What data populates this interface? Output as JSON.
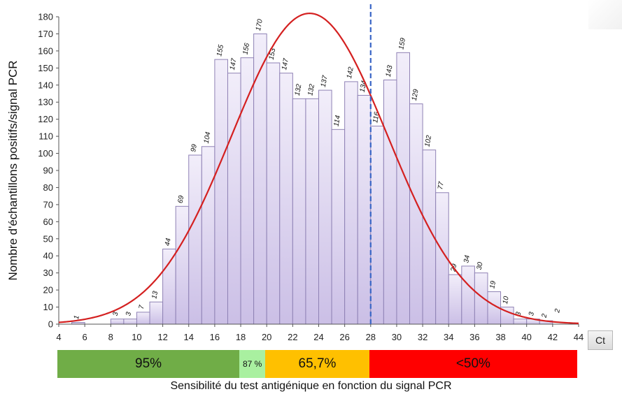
{
  "chart_data": {
    "type": "bar",
    "title": "",
    "ylabel": "Nombre d'échantillons positifs/signal PCR",
    "xlabel": "Sensibilité du test antigénique en fonction du signal PCR",
    "x_unit": "Ct",
    "xlim": [
      4,
      44
    ],
    "ylim": [
      0,
      180
    ],
    "y_ticks": [
      0,
      10,
      20,
      30,
      40,
      50,
      60,
      70,
      80,
      90,
      100,
      110,
      120,
      130,
      140,
      150,
      160,
      170,
      180
    ],
    "x_ticks": [
      4,
      6,
      8,
      10,
      12,
      14,
      16,
      18,
      20,
      22,
      24,
      26,
      28,
      30,
      32,
      34,
      36,
      38,
      40,
      42,
      44
    ],
    "bin_width": 1,
    "categories": [
      5,
      6,
      7,
      8,
      9,
      10,
      11,
      12,
      13,
      14,
      15,
      16,
      17,
      18,
      19,
      20,
      21,
      22,
      23,
      24,
      25,
      26,
      27,
      28,
      29,
      30,
      31,
      32,
      33,
      34,
      35,
      36,
      37,
      38,
      39,
      40,
      41
    ],
    "values": [
      1,
      0,
      0,
      3,
      3,
      7,
      13,
      44,
      69,
      99,
      104,
      155,
      147,
      156,
      170,
      153,
      147,
      132,
      132,
      137,
      114,
      142,
      134,
      116,
      143,
      159,
      129,
      102,
      77,
      29,
      34,
      30,
      19,
      10,
      3,
      3,
      2
    ],
    "extra_labels": [
      {
        "x": 42,
        "text": "2"
      }
    ],
    "gaussian_fit": {
      "color": "#d42020",
      "mean": 23.3,
      "sd": 6.0,
      "peak": 182
    },
    "threshold": {
      "x": 28,
      "color": "#3a66c6",
      "style": "dashed"
    },
    "sensitivity_bands": [
      {
        "from": 4,
        "to": 18,
        "label": "95%",
        "color": "#70ad47"
      },
      {
        "from": 18,
        "to": 20,
        "label": "87 %",
        "color": "#a9f0a0"
      },
      {
        "from": 20,
        "to": 28,
        "label": "65,7%",
        "color": "#ffc000"
      },
      {
        "from": 28,
        "to": 44,
        "label": "<50%",
        "color": "#ff0000"
      }
    ]
  },
  "colors": {
    "bar_fill_top": "#f2eefa",
    "bar_fill_bottom": "#cbbfe6",
    "bar_stroke": "#8f82b5",
    "axis": "#555555"
  },
  "caption": "Sensibilité du test antigénique en fonction du signal PCR",
  "unit_label": "Ct"
}
